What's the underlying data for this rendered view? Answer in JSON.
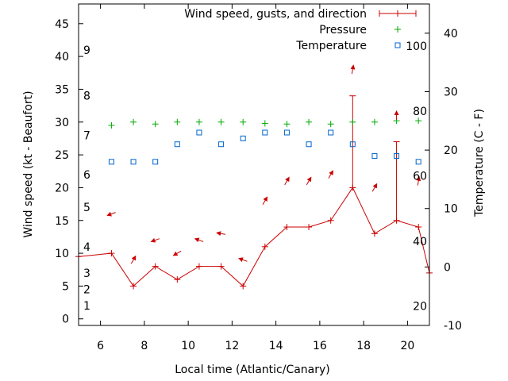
{
  "chart_data": {
    "type": "line",
    "xlabel": "Local time (Atlantic/Canary)",
    "ylabel": "Wind speed (kt - Beaufort)",
    "y2label": "Temperature (C - F)",
    "xlim": [
      5,
      21
    ],
    "ylim": [
      -1,
      48
    ],
    "y2lim": [
      -10,
      45
    ],
    "x_ticks": [
      6,
      8,
      10,
      12,
      14,
      16,
      18,
      20
    ],
    "y_ticks": [
      0,
      5,
      10,
      15,
      20,
      25,
      30,
      35,
      40,
      45
    ],
    "y2_ticks": [
      -10,
      0,
      10,
      20,
      30,
      40
    ],
    "beaufort_scale": [
      {
        "label": "1",
        "kt": 2
      },
      {
        "label": "2",
        "kt": 4.5
      },
      {
        "label": "3",
        "kt": 7
      },
      {
        "label": "4",
        "kt": 11
      },
      {
        "label": "5",
        "kt": 17
      },
      {
        "label": "6",
        "kt": 22
      },
      {
        "label": "7",
        "kt": 28
      },
      {
        "label": "8",
        "kt": 34
      },
      {
        "label": "9",
        "kt": 41
      }
    ],
    "fahrenheit_scale": [
      {
        "label": "20",
        "c": -6.7
      },
      {
        "label": "40",
        "c": 4.4
      },
      {
        "label": "60",
        "c": 15.6
      },
      {
        "label": "80",
        "c": 26.7
      },
      {
        "label": "100",
        "c": 37.8
      }
    ],
    "legend_position": "top-right",
    "series": [
      {
        "name": "Wind speed, gusts, and direction",
        "color": "#cc0000",
        "x": [
          5,
          6.5,
          7.5,
          8.5,
          9.5,
          10.5,
          11.5,
          12.5,
          13.5,
          14.5,
          15.5,
          16.5,
          17.5,
          18.5,
          19.5,
          20.5,
          21
        ],
        "values": [
          9.5,
          10,
          5,
          8,
          6,
          8,
          8,
          5,
          11,
          14,
          14,
          15,
          20,
          13,
          15,
          14,
          7
        ],
        "gusts": [
          null,
          null,
          null,
          null,
          null,
          null,
          null,
          null,
          null,
          null,
          null,
          null,
          34,
          null,
          27,
          null,
          null
        ]
      },
      {
        "name": "Pressure",
        "color": "#00aa00",
        "x": [
          6.5,
          7.5,
          8.5,
          9.5,
          10.5,
          11.5,
          12.5,
          13.5,
          14.5,
          15.5,
          16.5,
          17.5,
          18.5,
          19.5,
          20.5
        ],
        "values": [
          29.5,
          30,
          29.7,
          30,
          30,
          30,
          30,
          29.8,
          29.7,
          30,
          29.7,
          30,
          30,
          30.2,
          30.2
        ]
      },
      {
        "name": "Temperature",
        "axis": "y2",
        "color": "#0066cc",
        "x": [
          6.5,
          7.5,
          8.5,
          9.5,
          10.5,
          11.5,
          12.5,
          13.5,
          14.5,
          15.5,
          16.5,
          17.5,
          18.5,
          19.5,
          20.5
        ],
        "values": [
          18,
          18,
          18,
          21,
          23,
          21,
          22,
          23,
          23,
          21,
          23,
          21,
          19,
          19,
          18
        ]
      }
    ],
    "wind_direction_arrows": {
      "x": [
        6.5,
        7.5,
        8.5,
        9.5,
        10.5,
        11.5,
        12.5,
        13.5,
        14.5,
        15.5,
        16.5,
        17.5,
        18.5,
        19.5,
        20.5
      ],
      "y": [
        16,
        9,
        12,
        10,
        12,
        13,
        9,
        18,
        21,
        21,
        22,
        38,
        20,
        31,
        21
      ],
      "direction_deg": [
        200,
        60,
        200,
        210,
        160,
        170,
        160,
        60,
        60,
        60,
        60,
        80,
        60,
        90,
        80
      ]
    }
  }
}
